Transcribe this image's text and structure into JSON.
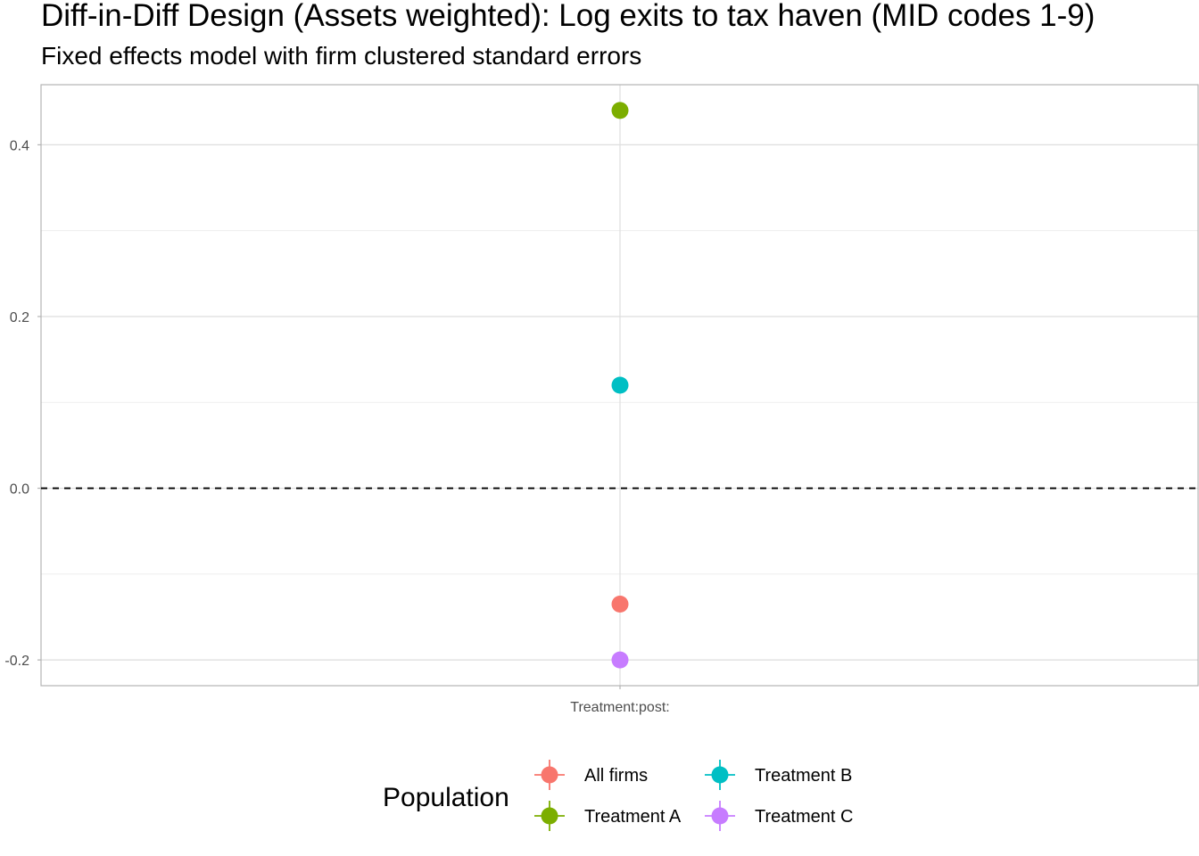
{
  "title": "Diff-in-Diff Design (Assets weighted): Log exits to tax haven (MID codes 1-9)",
  "subtitle": "Fixed effects model with firm clustered standard errors",
  "chart_data": {
    "type": "scatter",
    "categories": [
      "Treatment:post:"
    ],
    "ylim": [
      -0.23,
      0.47
    ],
    "y_ticks": [
      -0.2,
      0.0,
      0.2,
      0.4
    ],
    "y_tick_labels": [
      "-0.2",
      "0.0",
      "0.2",
      "0.4"
    ],
    "reference_line": 0.0,
    "grid": true,
    "series": [
      {
        "name": "All firms",
        "color": "#F8766D",
        "values": [
          -0.135
        ]
      },
      {
        "name": "Treatment A",
        "color": "#7CAE00",
        "values": [
          0.44
        ]
      },
      {
        "name": "Treatment B",
        "color": "#00BFC4",
        "values": [
          0.12
        ]
      },
      {
        "name": "Treatment C",
        "color": "#C77CFF",
        "values": [
          -0.2
        ]
      }
    ],
    "legend": {
      "title": "Population",
      "position": "bottom",
      "entries": [
        "All firms",
        "Treatment A",
        "Treatment B",
        "Treatment C"
      ]
    }
  }
}
